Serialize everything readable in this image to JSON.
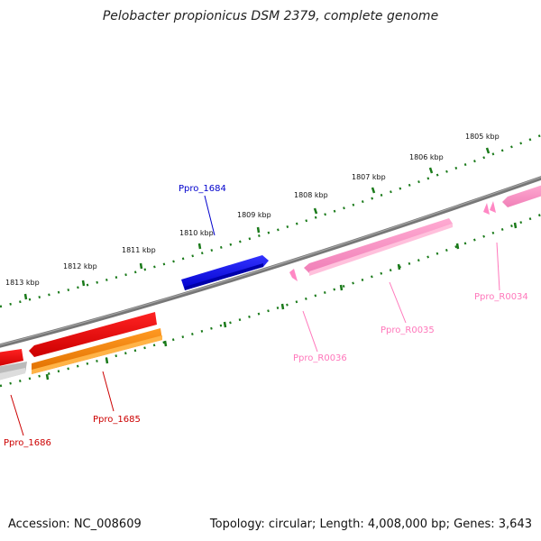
{
  "title": "Pelobacter propionicus DSM 2379, complete genome",
  "footer": {
    "accession": "Accession: NC_008609",
    "summary": "Topology: circular; Length: 4,008,000 bp; Genes: 3,643"
  },
  "scale_labels": [
    "1805 kbp",
    "1806 kbp",
    "1807 kbp",
    "1808 kbp",
    "1809 kbp",
    "1810 kbp",
    "1811 kbp",
    "1812 kbp",
    "1813 kbp"
  ],
  "genes": [
    {
      "name": "Ppro_1684",
      "strand": "+",
      "color": "#0000ee",
      "label_color": "#0000cc"
    },
    {
      "name": "Ppro_1685",
      "strand": "-",
      "color": "#ff8800",
      "label_color": "#cc0000"
    },
    {
      "name": "Ppro_1686",
      "strand": "-",
      "color": "#ee0000",
      "label_color": "#cc0000"
    },
    {
      "name": "Ppro_R0034",
      "strand": "+",
      "color": "#ff99cc",
      "label_color": "#ff77bb"
    },
    {
      "name": "Ppro_R0035",
      "strand": "+",
      "color": "#ff99cc",
      "label_color": "#ff77bb"
    },
    {
      "name": "Ppro_R0036",
      "strand": "+",
      "color": "#ff99cc",
      "label_color": "#ff77bb"
    }
  ],
  "colors": {
    "backbone": "#808080",
    "ticks": "#1a7a1a",
    "red_gene": "#ee0000",
    "orange_gene": "#ff8800",
    "grey_gene": "#bbbbbb",
    "pink_gene": "#ff99cc"
  }
}
